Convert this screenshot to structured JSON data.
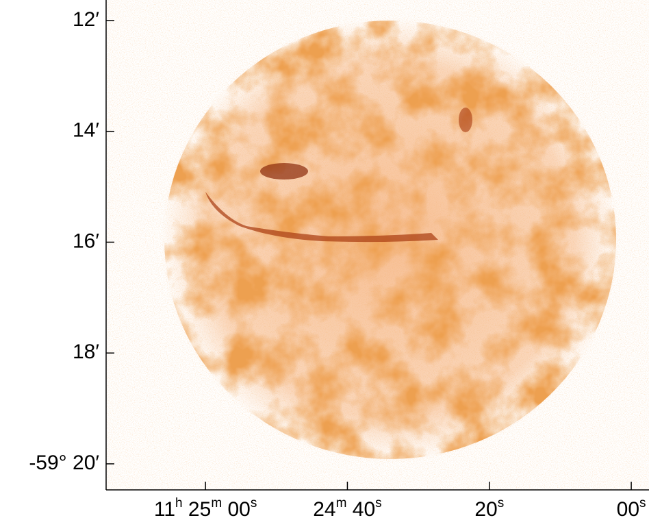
{
  "chart_data": {
    "type": "image",
    "xlim": [
      74,
      -2.5
    ],
    "xticks": [
      {
        "value": 60,
        "label": "11h 25m 00s"
      },
      {
        "value": 40,
        "label": "24m 40s"
      },
      {
        "value": 20,
        "label": "20s"
      },
      {
        "value": 0,
        "label": "00s"
      }
    ],
    "ylim": [
      20.47,
      11.63
    ],
    "yticks": [
      {
        "value": 12,
        "label": "12′"
      },
      {
        "value": 14,
        "label": "14′"
      },
      {
        "value": 16,
        "label": "16′"
      },
      {
        "value": 18,
        "label": "18′"
      },
      {
        "value": 20,
        "label": "-59° 20′"
      }
    ],
    "color": "#e8691c"
  }
}
